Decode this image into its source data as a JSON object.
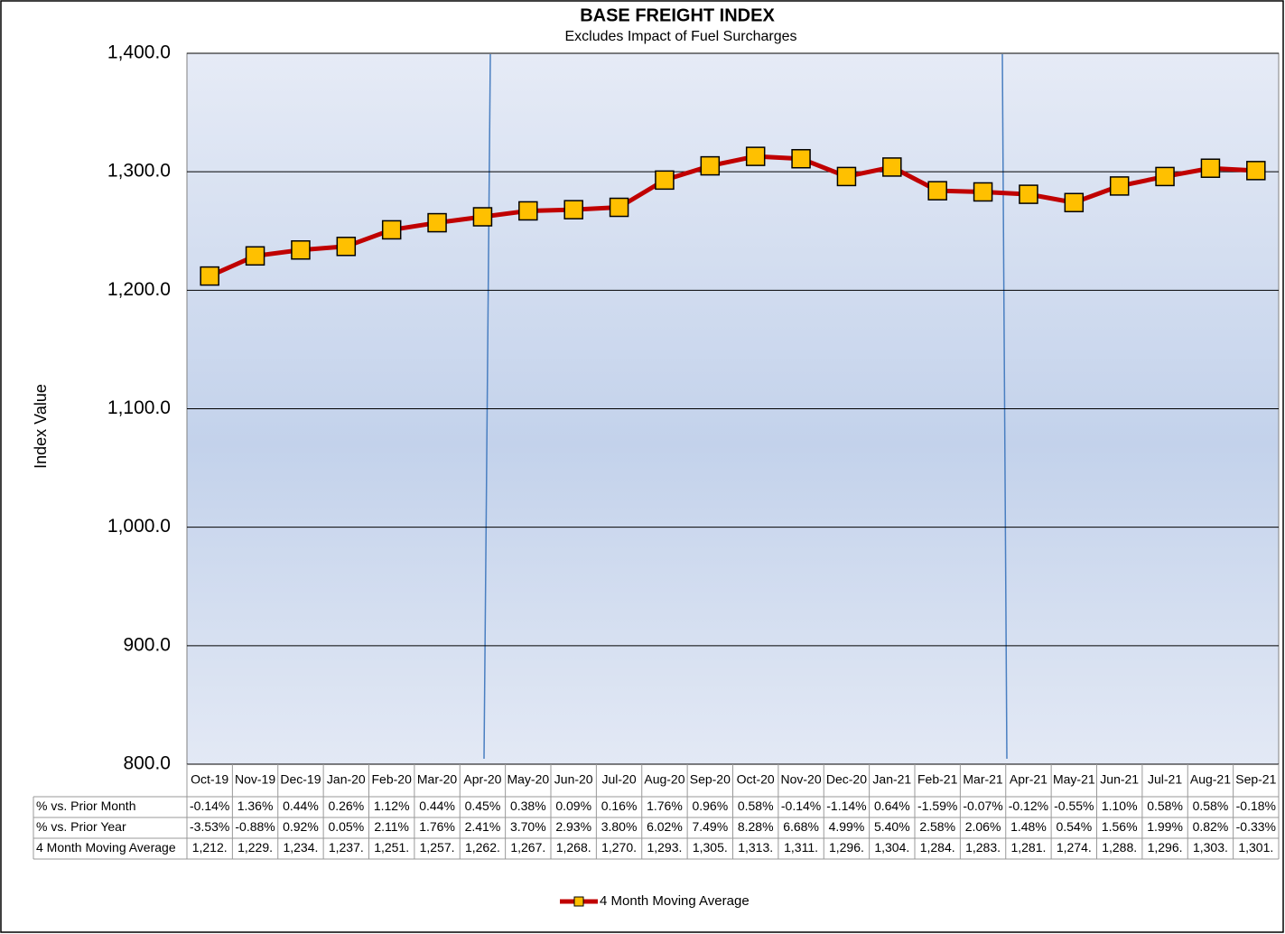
{
  "chart_data": {
    "type": "line",
    "title": "BASE FREIGHT INDEX",
    "subtitle": "Excludes Impact of Fuel Surcharges",
    "y_label": "Index Value",
    "categories": [
      "Oct-19",
      "Nov-19",
      "Dec-19",
      "Jan-20",
      "Feb-20",
      "Mar-20",
      "Apr-20",
      "May-20",
      "Jun-20",
      "Jul-20",
      "Aug-20",
      "Sep-20",
      "Oct-20",
      "Nov-20",
      "Dec-20",
      "Jan-21",
      "Feb-21",
      "Mar-21",
      "Apr-21",
      "May-21",
      "Jun-21",
      "Jul-21",
      "Aug-21",
      "Sep-21"
    ],
    "series": [
      {
        "name": "4 Month Moving Average",
        "color": "#c00000",
        "marker_color": "#ffc000",
        "values": [
          1212,
          1229,
          1234,
          1237,
          1251,
          1257,
          1262,
          1267,
          1268,
          1270,
          1293,
          1305,
          1313,
          1311,
          1296,
          1304,
          1284,
          1283,
          1281,
          1274,
          1288,
          1296,
          1303,
          1301
        ],
        "value_labels": [
          "1,212.",
          "1,229.",
          "1,234.",
          "1,237.",
          "1,251.",
          "1,257.",
          "1,262.",
          "1,267.",
          "1,268.",
          "1,270.",
          "1,293.",
          "1,305.",
          "1,313.",
          "1,311.",
          "1,296.",
          "1,304.",
          "1,284.",
          "1,283.",
          "1,281.",
          "1,274.",
          "1,288.",
          "1,296.",
          "1,303.",
          "1,301."
        ]
      }
    ],
    "data_table": [
      {
        "name": "% vs. Prior Month",
        "values": [
          -0.14,
          1.36,
          0.44,
          0.26,
          1.12,
          0.44,
          0.45,
          0.38,
          0.09,
          0.16,
          1.76,
          0.96,
          0.58,
          -0.14,
          -1.14,
          0.64,
          -1.59,
          -0.07,
          -0.12,
          -0.55,
          1.1,
          0.58,
          0.58,
          -0.18
        ],
        "value_labels": [
          "-0.14%",
          "1.36%",
          "0.44%",
          "0.26%",
          "1.12%",
          "0.44%",
          "0.45%",
          "0.38%",
          "0.09%",
          "0.16%",
          "1.76%",
          "0.96%",
          "0.58%",
          "-0.14%",
          "-1.14%",
          "0.64%",
          "-1.59%",
          "-0.07%",
          "-0.12%",
          "-0.55%",
          "1.10%",
          "0.58%",
          "0.58%",
          "-0.18%"
        ]
      },
      {
        "name": "% vs. Prior Year",
        "values": [
          -3.53,
          -0.88,
          0.92,
          0.05,
          2.11,
          1.76,
          2.41,
          3.7,
          2.93,
          3.8,
          6.02,
          7.49,
          8.28,
          6.68,
          4.99,
          5.4,
          2.58,
          2.06,
          1.48,
          0.54,
          1.56,
          1.99,
          0.82,
          -0.33
        ],
        "value_labels": [
          "-3.53%",
          "-0.88%",
          "0.92%",
          "0.05%",
          "2.11%",
          "1.76%",
          "2.41%",
          "3.70%",
          "2.93%",
          "3.80%",
          "6.02%",
          "7.49%",
          "8.28%",
          "6.68%",
          "4.99%",
          "5.40%",
          "2.58%",
          "2.06%",
          "1.48%",
          "0.54%",
          "1.56%",
          "1.99%",
          "0.82%",
          "-0.33%"
        ]
      }
    ],
    "ylim": [
      800,
      1400
    ],
    "yticks": [
      {
        "value": 800,
        "label": "800.0"
      },
      {
        "value": 900,
        "label": "900.0"
      },
      {
        "value": 1000,
        "label": "1,000.0"
      },
      {
        "value": 1100,
        "label": "1,100.0"
      },
      {
        "value": 1200,
        "label": "1,200.0"
      },
      {
        "value": 1300,
        "label": "1,300.0"
      },
      {
        "value": 1400,
        "label": "1,400.0"
      }
    ],
    "grid": true,
    "legend": "bottom"
  }
}
